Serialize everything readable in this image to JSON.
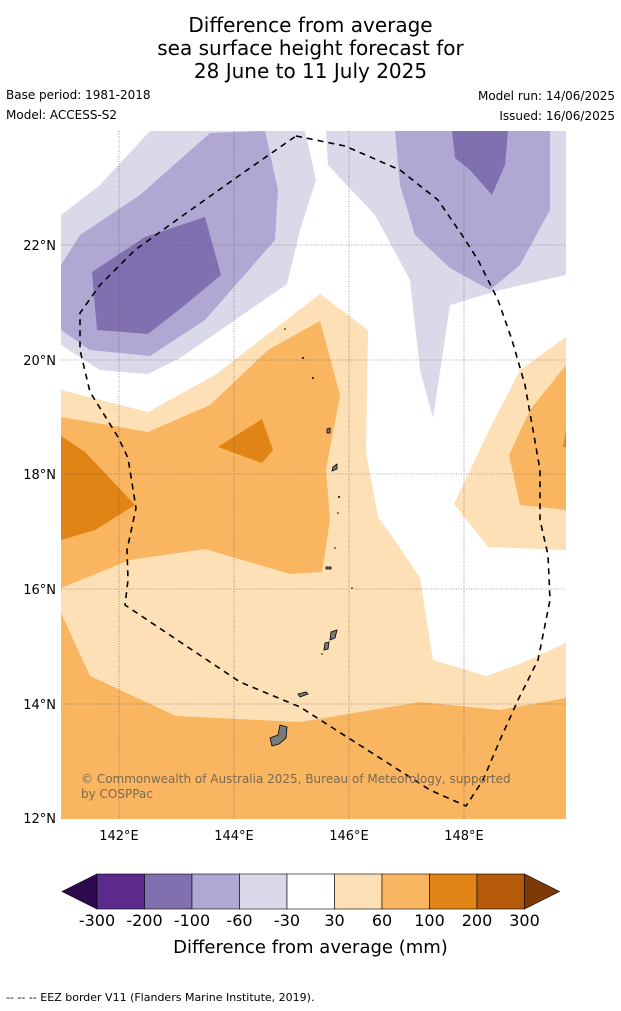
{
  "title": {
    "line1": "Difference from average",
    "line2": "sea surface height forecast for",
    "line3": "28 June to 11 July 2025"
  },
  "meta": {
    "base_period": "Base period: 1981-2018",
    "model": "Model: ACCESS-S2",
    "model_run": "Model run: 14/06/2025",
    "issued": "Issued: 16/06/2025"
  },
  "map": {
    "lat_labels": [
      "22°N",
      "20°N",
      "18°N",
      "16°N",
      "14°N",
      "12°N"
    ],
    "lon_labels": [
      "142°E",
      "144°E",
      "146°E",
      "148°E"
    ],
    "extent": {
      "lon_min": 141,
      "lon_max": 149.8,
      "lat_min": 12,
      "lat_max": 24
    },
    "credit": "© Commonwealth of Australia 2025, Bureau of Meteorology, supported by COSPPac"
  },
  "colorbar": {
    "labels": [
      "-300",
      "-200",
      "-100",
      "-60",
      "-30",
      "30",
      "60",
      "100",
      "200",
      "300"
    ],
    "colors": [
      "#2d0a4e",
      "#5b2a8a",
      "#8070b0",
      "#b0a8d2",
      "#d9d9ea",
      "#ffffff",
      "#fde0b5",
      "#f9b560",
      "#e08415",
      "#b5590a",
      "#7d3a06"
    ],
    "title": "Difference from average (mm)"
  },
  "footer": "-- -- -- EEZ border V11 (Flanders Marine Institute, 2019)."
}
